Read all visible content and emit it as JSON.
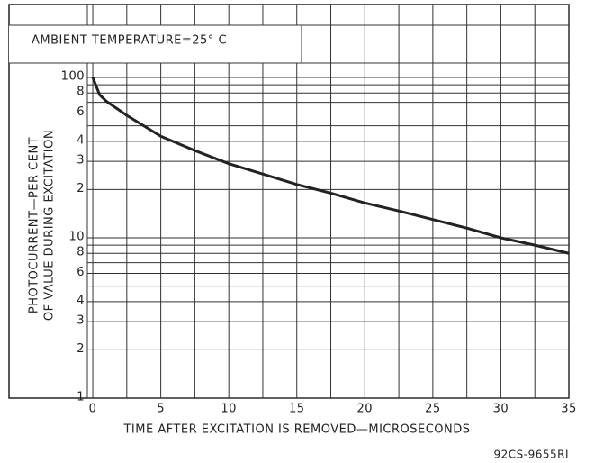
{
  "chart_data": {
    "type": "line",
    "title": "AMBIENT TEMPERATURE=25° C",
    "ylabel": [
      "PHOTOCURRENT—PER CENT",
      "OF VALUE DURING EXCITATION"
    ],
    "xlabel": "TIME AFTER EXCITATION IS REMOVED—MICROSECONDS",
    "code": "92CS-9655RI",
    "x": [
      0,
      0.5,
      1,
      2.5,
      5,
      7.5,
      10,
      12.5,
      15,
      17.5,
      20,
      22.5,
      25,
      27.5,
      30,
      32.5,
      35
    ],
    "series": [
      {
        "color": "#222222",
        "values": [
          100,
          78,
          71,
          58,
          43,
          35,
          29,
          25,
          21.5,
          19,
          16.5,
          14.7,
          13,
          11.5,
          10,
          9,
          8
        ]
      }
    ],
    "xlim": [
      -0.4,
      35
    ],
    "xticks": [
      0,
      5,
      10,
      15,
      20,
      25,
      30,
      35
    ],
    "minor_xticks": [
      2.5,
      7.5,
      12.5,
      17.5,
      22.5,
      27.5,
      32.5
    ],
    "ylim": [
      1,
      100
    ],
    "log_y": true,
    "yticks": [
      1,
      2,
      3,
      4,
      6,
      8,
      10,
      {
        "value": 20,
        "label": "2"
      },
      {
        "value": 30,
        "label": "3"
      },
      {
        "value": 40,
        "label": "4"
      },
      {
        "value": 60,
        "label": "6"
      },
      {
        "value": 80,
        "label": "8"
      },
      100
    ],
    "minor_yticks": [
      5,
      7,
      9,
      50,
      70,
      90
    ],
    "grid": true
  }
}
